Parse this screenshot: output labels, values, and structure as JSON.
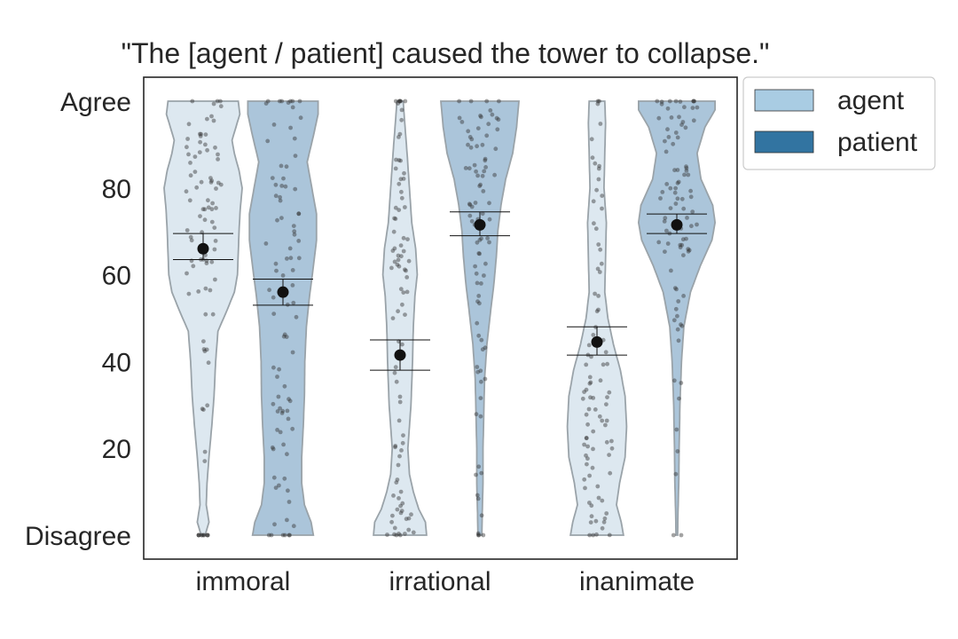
{
  "chart_data": {
    "type": "violin",
    "title": "\"The [agent / patient] caused the tower to collapse.\"",
    "categories": [
      "immoral",
      "irrational",
      "inanimate"
    ],
    "ylim": [
      0,
      100
    ],
    "yticks": [
      {
        "value": 100,
        "label": "Agree"
      },
      {
        "value": 80,
        "label": "80"
      },
      {
        "value": 60,
        "label": "60"
      },
      {
        "value": 40,
        "label": "40"
      },
      {
        "value": 20,
        "label": "20"
      },
      {
        "value": 0,
        "label": "Disagree"
      }
    ],
    "legend": {
      "placement": "outside-top-right",
      "entries": [
        "agent",
        "patient"
      ]
    },
    "grid": false,
    "series": [
      {
        "name": "agent",
        "color": "#a9cce3",
        "fill_color": "#dde8f0",
        "groups": [
          {
            "category": "immoral",
            "mean": 66,
            "ci": [
              63.5,
              69.5
            ],
            "density": [
              [
                0,
                0.05
              ],
              [
                3,
                0.15
              ],
              [
                7,
                0.08
              ],
              [
                12,
                0.1
              ],
              [
                18,
                0.15
              ],
              [
                25,
                0.22
              ],
              [
                32,
                0.28
              ],
              [
                40,
                0.32
              ],
              [
                47,
                0.38
              ],
              [
                52,
                0.62
              ],
              [
                56,
                0.8
              ],
              [
                60,
                0.88
              ],
              [
                65,
                0.9
              ],
              [
                70,
                0.92
              ],
              [
                75,
                0.95
              ],
              [
                80,
                1.0
              ],
              [
                84,
                0.92
              ],
              [
                88,
                0.8
              ],
              [
                91,
                0.74
              ],
              [
                94,
                0.84
              ],
              [
                97,
                0.94
              ],
              [
                100,
                0.9
              ]
            ]
          },
          {
            "category": "irrational",
            "mean": 41.5,
            "ci": [
              38,
              45
            ],
            "density": [
              [
                0,
                0.68
              ],
              [
                3,
                0.65
              ],
              [
                6,
                0.48
              ],
              [
                10,
                0.34
              ],
              [
                14,
                0.24
              ],
              [
                20,
                0.2
              ],
              [
                30,
                0.28
              ],
              [
                40,
                0.32
              ],
              [
                48,
                0.34
              ],
              [
                55,
                0.38
              ],
              [
                60,
                0.44
              ],
              [
                66,
                0.4
              ],
              [
                72,
                0.3
              ],
              [
                80,
                0.24
              ],
              [
                88,
                0.18
              ],
              [
                95,
                0.12
              ],
              [
                100,
                0.08
              ]
            ]
          },
          {
            "category": "inanimate",
            "mean": 44.5,
            "ci": [
              41.5,
              48
            ],
            "density": [
              [
                0,
                0.68
              ],
              [
                3,
                0.62
              ],
              [
                7,
                0.5
              ],
              [
                12,
                0.58
              ],
              [
                18,
                0.72
              ],
              [
                25,
                0.76
              ],
              [
                32,
                0.72
              ],
              [
                38,
                0.6
              ],
              [
                44,
                0.42
              ],
              [
                50,
                0.28
              ],
              [
                56,
                0.2
              ],
              [
                64,
                0.22
              ],
              [
                72,
                0.24
              ],
              [
                80,
                0.18
              ],
              [
                88,
                0.2
              ],
              [
                95,
                0.22
              ],
              [
                100,
                0.2
              ]
            ]
          }
        ]
      },
      {
        "name": "patient",
        "color": "#3274a1",
        "fill_color": "#abc5da",
        "groups": [
          {
            "category": "immoral",
            "mean": 56,
            "ci": [
              53,
              59
            ],
            "density": [
              [
                0,
                0.78
              ],
              [
                3,
                0.72
              ],
              [
                7,
                0.55
              ],
              [
                12,
                0.48
              ],
              [
                18,
                0.48
              ],
              [
                25,
                0.52
              ],
              [
                32,
                0.55
              ],
              [
                40,
                0.56
              ],
              [
                48,
                0.6
              ],
              [
                55,
                0.68
              ],
              [
                62,
                0.78
              ],
              [
                68,
                0.86
              ],
              [
                74,
                0.86
              ],
              [
                80,
                0.74
              ],
              [
                86,
                0.62
              ],
              [
                92,
                0.78
              ],
              [
                97,
                0.9
              ],
              [
                100,
                0.9
              ]
            ]
          },
          {
            "category": "irrational",
            "mean": 71.5,
            "ci": [
              69,
              74.5
            ],
            "density": [
              [
                0,
                0.05
              ],
              [
                5,
                0.06
              ],
              [
                12,
                0.08
              ],
              [
                20,
                0.08
              ],
              [
                28,
                0.1
              ],
              [
                36,
                0.12
              ],
              [
                44,
                0.18
              ],
              [
                52,
                0.28
              ],
              [
                58,
                0.36
              ],
              [
                64,
                0.42
              ],
              [
                70,
                0.46
              ],
              [
                76,
                0.54
              ],
              [
                82,
                0.66
              ],
              [
                88,
                0.84
              ],
              [
                94,
                0.94
              ],
              [
                100,
                1.0
              ]
            ]
          },
          {
            "category": "inanimate",
            "mean": 71.5,
            "ci": [
              69.5,
              74
            ],
            "density": [
              [
                0,
                0.02
              ],
              [
                5,
                0.03
              ],
              [
                12,
                0.05
              ],
              [
                20,
                0.06
              ],
              [
                30,
                0.08
              ],
              [
                40,
                0.12
              ],
              [
                48,
                0.18
              ],
              [
                56,
                0.35
              ],
              [
                62,
                0.6
              ],
              [
                68,
                0.9
              ],
              [
                72,
                0.98
              ],
              [
                76,
                0.92
              ],
              [
                82,
                0.62
              ],
              [
                88,
                0.52
              ],
              [
                94,
                0.72
              ],
              [
                98,
                0.98
              ],
              [
                100,
                0.98
              ]
            ]
          }
        ]
      }
    ]
  }
}
